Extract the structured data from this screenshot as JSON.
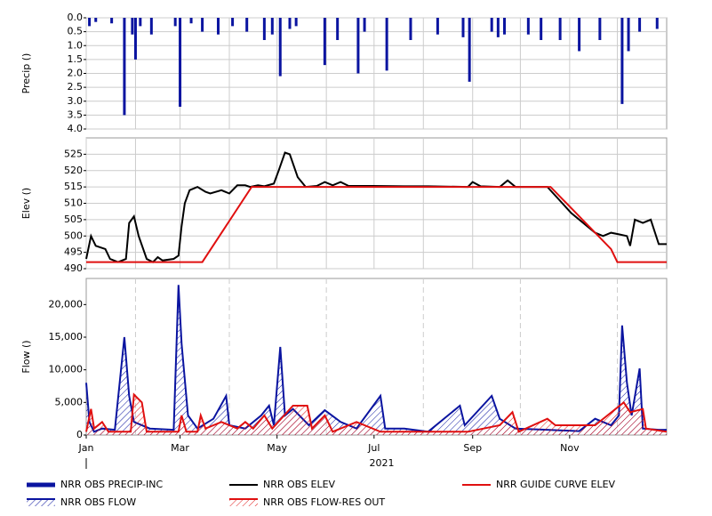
{
  "chart_data": [
    {
      "type": "bar",
      "y_label": "Precip ()",
      "ylim": [
        0,
        4
      ],
      "inverted": true,
      "grid": true,
      "yticks": [
        {
          "value": 0,
          "label": "0.0"
        },
        0.5,
        {
          "value": 1,
          "label": "1.0"
        },
        1.5,
        {
          "value": 2,
          "label": "2.0"
        },
        2.5,
        {
          "value": 3,
          "label": "3.0"
        },
        3.5,
        {
          "value": 4,
          "label": "4.0"
        }
      ],
      "series": [
        {
          "name": "NRR OBS PRECIP-INC",
          "color": "#0a14a0",
          "x": [
            2,
            6,
            16,
            24,
            29,
            31,
            34,
            41,
            56,
            59,
            66,
            73,
            83,
            92,
            101,
            112,
            117,
            122,
            128,
            132,
            150,
            158,
            171,
            175,
            189,
            204,
            221,
            237,
            241,
            255,
            259,
            263,
            278,
            286,
            298,
            310,
            323,
            337,
            341,
            348,
            359
          ],
          "values": [
            0.3,
            0.15,
            0.2,
            3.5,
            0.6,
            1.5,
            0.3,
            0.6,
            0.3,
            3.2,
            0.2,
            0.5,
            0.6,
            0.3,
            0.5,
            0.8,
            0.6,
            2.1,
            0.4,
            0.3,
            1.7,
            0.8,
            2.0,
            0.5,
            1.9,
            0.8,
            0.6,
            0.7,
            2.3,
            0.5,
            0.7,
            0.6,
            0.6,
            0.8,
            0.8,
            1.2,
            0.8,
            3.1,
            1.2,
            0.5,
            0.4
          ]
        }
      ]
    },
    {
      "type": "line",
      "y_label": "Elev ()",
      "ylim": [
        490,
        530
      ],
      "grid": true,
      "yticks": [
        490,
        495,
        500,
        505,
        510,
        515,
        520,
        525
      ],
      "series": [
        {
          "name": "NRR OBS ELEV",
          "color": "#000000",
          "x": [
            0,
            3,
            6,
            12,
            15,
            20,
            25,
            27,
            30,
            33,
            38,
            42,
            45,
            48,
            55,
            58,
            60,
            62,
            65,
            70,
            75,
            78,
            85,
            90,
            95,
            100,
            103,
            108,
            112,
            118,
            121,
            125,
            128,
            133,
            138,
            145,
            150,
            155,
            160,
            165,
            180,
            200,
            215,
            240,
            243,
            248,
            260,
            265,
            270,
            290,
            305,
            315,
            320,
            325,
            330,
            335,
            340,
            342,
            345,
            350,
            355,
            360,
            365
          ],
          "values": [
            493,
            500,
            497,
            496,
            493,
            492,
            493,
            504,
            506,
            500,
            493,
            492,
            493.5,
            492.5,
            493,
            494,
            503,
            510,
            514,
            515,
            513.5,
            513,
            514,
            513,
            515.5,
            515.5,
            515,
            515.5,
            515.2,
            516,
            520,
            525.5,
            525,
            518,
            515,
            515.3,
            516.5,
            515.5,
            516.5,
            515.3,
            515.3,
            515.2,
            515.2,
            515,
            516.5,
            515.2,
            515,
            517,
            515,
            515,
            507,
            503,
            501,
            500,
            501,
            500.5,
            500,
            497,
            505,
            504,
            505,
            497.5,
            497.5
          ]
        },
        {
          "name": "NRR GUIDE CURVE ELEV",
          "color": "#e01010",
          "x": [
            0,
            73,
            104,
            292,
            330,
            334,
            365
          ],
          "values": [
            492,
            492,
            515,
            515,
            496,
            492,
            492
          ]
        }
      ]
    },
    {
      "type": "area",
      "y_label": "Flow ()",
      "ylim": [
        0,
        24000
      ],
      "xlim": [
        0,
        365
      ],
      "x_label": "2021",
      "yticks": [
        0,
        {
          "value": 5000,
          "label": "5,000"
        },
        {
          "value": 10000,
          "label": "10,000"
        },
        {
          "value": 15000,
          "label": "15,000"
        },
        {
          "value": 20000,
          "label": "20,000"
        }
      ],
      "xticks": [
        {
          "value": 0,
          "label": "Jan"
        },
        {
          "value": 59,
          "label": "Mar"
        },
        {
          "value": 120,
          "label": "May"
        },
        {
          "value": 181,
          "label": "Jul"
        },
        {
          "value": 243,
          "label": "Sep"
        },
        {
          "value": 304,
          "label": "Nov"
        }
      ],
      "minor_xticks": [
        31,
        90,
        151,
        212,
        273,
        334
      ],
      "series": [
        {
          "name": "NRR OBS FLOW",
          "color": "#0a14a0",
          "x": [
            0,
            2,
            5,
            10,
            18,
            24,
            27,
            30,
            40,
            55,
            58,
            60,
            64,
            70,
            80,
            88,
            90,
            100,
            110,
            115,
            118,
            122,
            125,
            130,
            140,
            150,
            160,
            170,
            185,
            188,
            200,
            215,
            235,
            238,
            255,
            260,
            270,
            290,
            310,
            320,
            330,
            335,
            337,
            340,
            343,
            348,
            350,
            360,
            365
          ],
          "values": [
            8000,
            2000,
            500,
            1000,
            800,
            15000,
            6000,
            2000,
            1000,
            800,
            23000,
            14000,
            3000,
            1000,
            2500,
            6000,
            1500,
            1000,
            3000,
            4500,
            1500,
            13500,
            3000,
            4000,
            1500,
            3800,
            2000,
            1000,
            6000,
            1000,
            1000,
            500,
            4500,
            1500,
            6000,
            2500,
            1000,
            800,
            600,
            2500,
            1500,
            3000,
            16800,
            8000,
            3000,
            10200,
            1000,
            800,
            800
          ]
        },
        {
          "name": "NRR OBS FLOW-RES OUT",
          "color": "#e01010",
          "x": [
            0,
            3,
            5,
            10,
            14,
            28,
            30,
            35,
            38,
            45,
            58,
            60,
            63,
            70,
            72,
            75,
            85,
            95,
            100,
            105,
            112,
            117,
            130,
            139,
            142,
            150,
            155,
            170,
            185,
            200,
            240,
            260,
            268,
            272,
            290,
            295,
            320,
            338,
            342,
            350,
            352,
            365
          ],
          "values": [
            500,
            4000,
            1000,
            2000,
            500,
            500,
            6200,
            5000,
            500,
            500,
            500,
            3000,
            500,
            500,
            3000,
            1000,
            2000,
            1000,
            2000,
            1000,
            3000,
            1000,
            4500,
            4500,
            1000,
            3000,
            500,
            2000,
            500,
            500,
            500,
            1500,
            3500,
            500,
            2500,
            1500,
            1500,
            5000,
            3500,
            4000,
            1000,
            500
          ]
        }
      ]
    }
  ]
}
